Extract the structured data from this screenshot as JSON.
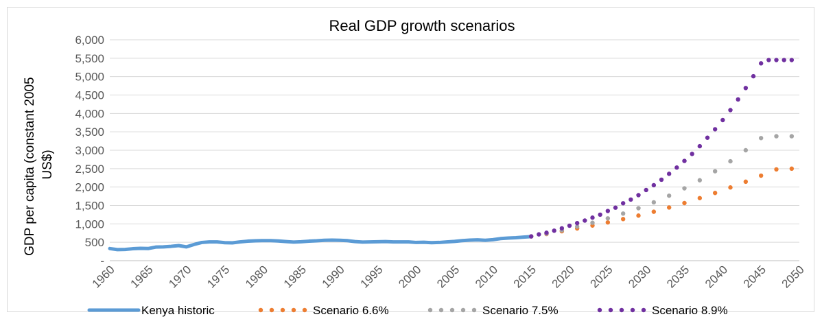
{
  "chart_data": {
    "type": "line",
    "title": "Real GDP growth scenarios",
    "xlabel": "",
    "ylabel_lines": [
      "GDP per capita (constant 2005",
      "US$)"
    ],
    "xlim": [
      1960,
      2050
    ],
    "ylim": [
      0,
      6000
    ],
    "x_ticks": [
      "1960",
      "1965",
      "1970",
      "1975",
      "1980",
      "1985",
      "1990",
      "1995",
      "2000",
      "2005",
      "2010",
      "2015",
      "2020",
      "2025",
      "2030",
      "2035",
      "2040",
      "2045",
      "2050"
    ],
    "y_ticks": [
      "-",
      "500",
      "1,000",
      "1,500",
      "2,000",
      "2,500",
      "3,000",
      "3,500",
      "4,000",
      "4,500",
      "5,000",
      "5,500",
      "6,000"
    ],
    "grid": true,
    "legend_position": "bottom",
    "series": [
      {
        "name": "Kenya historic",
        "style": "solid",
        "color": "#5B9BD5",
        "x": [
          1960,
          1961,
          1962,
          1963,
          1964,
          1965,
          1966,
          1967,
          1968,
          1969,
          1970,
          1971,
          1972,
          1973,
          1974,
          1975,
          1976,
          1977,
          1978,
          1979,
          1980,
          1981,
          1982,
          1983,
          1984,
          1985,
          1986,
          1987,
          1988,
          1989,
          1990,
          1991,
          1992,
          1993,
          1994,
          1995,
          1996,
          1997,
          1998,
          1999,
          2000,
          2001,
          2002,
          2003,
          2004,
          2005,
          2006,
          2007,
          2008,
          2009,
          2010,
          2011,
          2012,
          2013,
          2014,
          2015
        ],
        "y": [
          330,
          300,
          305,
          325,
          335,
          330,
          370,
          375,
          390,
          410,
          375,
          440,
          495,
          510,
          510,
          490,
          485,
          510,
          530,
          540,
          545,
          545,
          535,
          520,
          505,
          515,
          530,
          540,
          555,
          560,
          555,
          545,
          520,
          505,
          510,
          515,
          520,
          510,
          510,
          510,
          495,
          500,
          490,
          495,
          510,
          525,
          545,
          560,
          565,
          555,
          570,
          600,
          615,
          625,
          640,
          655
        ]
      },
      {
        "name": "Scenario 6.6%",
        "style": "dotted",
        "color": "#ED7D31",
        "x": [
          2015,
          2017,
          2019,
          2021,
          2023,
          2025,
          2027,
          2029,
          2031,
          2033,
          2035,
          2037,
          2039,
          2041,
          2043,
          2045,
          2047,
          2049
        ],
        "y": [
          660,
          725,
          800,
          875,
          955,
          1040,
          1130,
          1225,
          1330,
          1445,
          1565,
          1700,
          1840,
          1990,
          2145,
          2310,
          2480,
          2500
        ]
      },
      {
        "name": "Scenario 7.5%",
        "style": "dotted",
        "color": "#A5A5A5",
        "x": [
          2015,
          2017,
          2019,
          2021,
          2023,
          2025,
          2027,
          2029,
          2031,
          2033,
          2035,
          2037,
          2039,
          2041,
          2043,
          2045,
          2047,
          2049
        ],
        "y": [
          660,
          735,
          825,
          925,
          1030,
          1150,
          1280,
          1425,
          1585,
          1765,
          1965,
          2185,
          2430,
          2700,
          3000,
          3330,
          3380,
          3380
        ]
      },
      {
        "name": "Scenario 8.9%",
        "style": "dotted",
        "color": "#7030A0",
        "x": [
          2015,
          2016,
          2017,
          2018,
          2019,
          2020,
          2021,
          2022,
          2023,
          2024,
          2025,
          2026,
          2027,
          2028,
          2029,
          2030,
          2031,
          2032,
          2033,
          2034,
          2035,
          2036,
          2037,
          2038,
          2039,
          2040,
          2041,
          2042,
          2043,
          2044,
          2045,
          2046,
          2047,
          2048,
          2049
        ],
        "y": [
          660,
          715,
          760,
          815,
          880,
          950,
          1020,
          1090,
          1170,
          1250,
          1350,
          1440,
          1560,
          1660,
          1780,
          1920,
          2050,
          2200,
          2360,
          2530,
          2710,
          2900,
          3110,
          3340,
          3570,
          3820,
          4090,
          4380,
          4690,
          5010,
          5360,
          5450,
          5450,
          5450,
          5450
        ]
      }
    ]
  }
}
